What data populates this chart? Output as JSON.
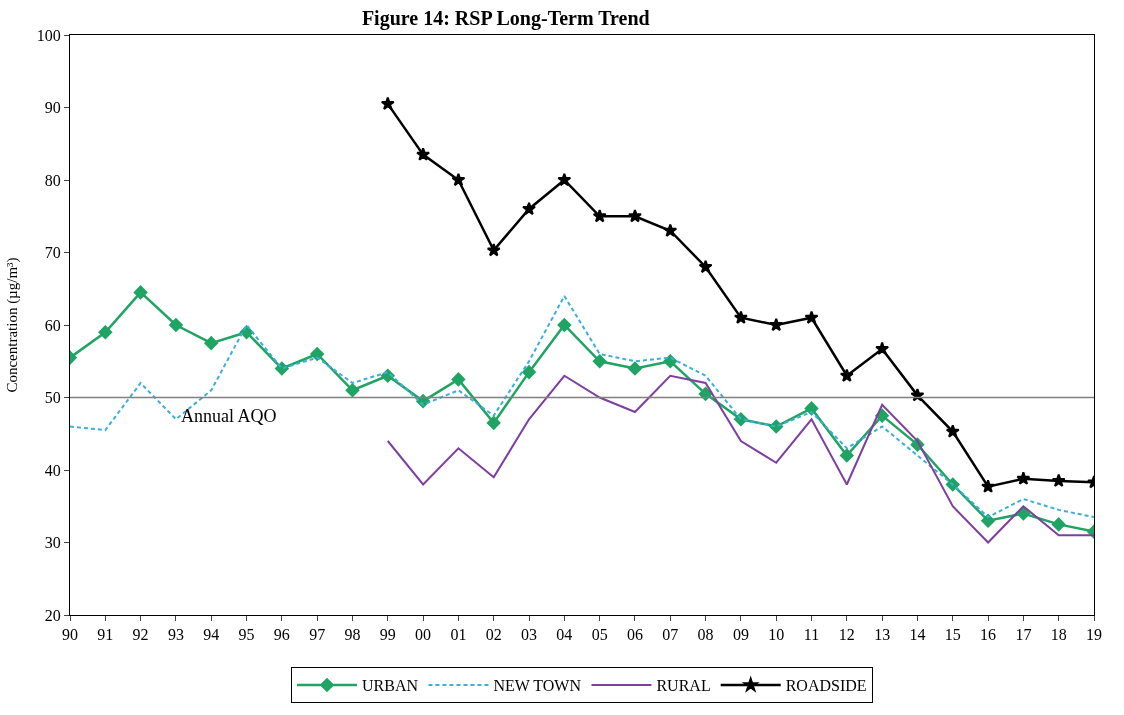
{
  "chart_data": {
    "type": "line",
    "title": "Figure 14: RSP Long-Term Trend",
    "ylabel": "Concentration (µg/m³)",
    "categories": [
      "90",
      "91",
      "92",
      "93",
      "94",
      "95",
      "96",
      "97",
      "98",
      "99",
      "00",
      "01",
      "02",
      "03",
      "04",
      "05",
      "06",
      "07",
      "08",
      "09",
      "10",
      "11",
      "12",
      "13",
      "14",
      "15",
      "16",
      "17",
      "18",
      "19"
    ],
    "series": [
      {
        "name": "URBAN",
        "color": "#1fa463",
        "marker": "diamond",
        "line_style": "solid",
        "values": [
          55.5,
          59,
          64.5,
          60,
          57.5,
          59,
          54,
          56,
          51,
          53,
          49.5,
          52.5,
          46.5,
          53.5,
          60,
          55,
          54,
          55,
          50.5,
          47,
          46,
          48.5,
          42,
          47.5,
          43.5,
          38,
          33,
          34,
          32.5,
          31.5
        ]
      },
      {
        "name": "NEW TOWN",
        "color": "#3aaedc",
        "marker": "none",
        "line_style": "dashed",
        "values": [
          46,
          45.5,
          52,
          47,
          51,
          60,
          54,
          55.5,
          52,
          53.5,
          49,
          51,
          47.5,
          55,
          64,
          56,
          55,
          55.5,
          53,
          47,
          46,
          48,
          43,
          46,
          42,
          38,
          33.5,
          36,
          34.5,
          33.5
        ]
      },
      {
        "name": "RURAL",
        "color": "#7e3fa0",
        "marker": "none",
        "line_style": "solid",
        "values": [
          null,
          null,
          null,
          null,
          null,
          null,
          null,
          null,
          null,
          44,
          38,
          43,
          39,
          47,
          53,
          50,
          48,
          53,
          52,
          44,
          41,
          47,
          38,
          49,
          44,
          35,
          30,
          35,
          31,
          31
        ]
      },
      {
        "name": "ROADSIDE",
        "color": "#000000",
        "marker": "star",
        "line_style": "solid",
        "values": [
          null,
          null,
          null,
          null,
          null,
          null,
          null,
          null,
          null,
          90.5,
          83.5,
          80,
          70.3,
          76,
          80,
          75,
          75,
          73,
          68,
          61,
          60,
          61,
          53,
          56.7,
          50.3,
          45.3,
          37.7,
          38.8,
          38.5,
          38.3
        ]
      }
    ],
    "ylim": [
      20,
      100
    ],
    "yticks": [
      20,
      30,
      40,
      50,
      60,
      70,
      80,
      90,
      100
    ],
    "ref_lines": [
      {
        "axis": "y",
        "value": 50,
        "label": "Annual AQO",
        "color": "#808080"
      }
    ],
    "legend": "bottom"
  }
}
